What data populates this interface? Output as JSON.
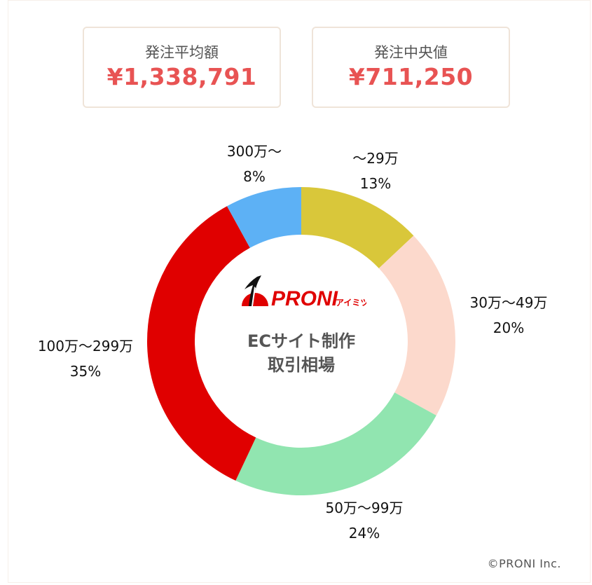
{
  "summary": {
    "average": {
      "label": "発注平均額",
      "value": "¥1,338,791"
    },
    "median": {
      "label": "発注中央値",
      "value": "¥711,250"
    }
  },
  "center": {
    "logo_text": "PRONI",
    "logo_sub": "アイミツ",
    "title_line1": "ECサイト制作",
    "title_line2": "取引相場"
  },
  "footer": {
    "copyright": "©PRONI Inc."
  },
  "colors": {
    "accent": "#e85353",
    "brand_red": "#e00000"
  },
  "chart_data": {
    "type": "pie",
    "subtype": "donut",
    "title": "ECサイト制作 取引相場",
    "categories": [
      "〜29万",
      "30万〜49万",
      "50万〜99万",
      "100万〜299万",
      "300万〜"
    ],
    "values": [
      13,
      20,
      24,
      35,
      8
    ],
    "labels": [
      "13%",
      "20%",
      "24%",
      "35%",
      "8%"
    ],
    "colors": [
      "#d9c73a",
      "#fcd9cc",
      "#91e5b0",
      "#e00000",
      "#5db1f5"
    ],
    "start_angle": "top (12 o'clock), clockwise",
    "unit": "%"
  }
}
